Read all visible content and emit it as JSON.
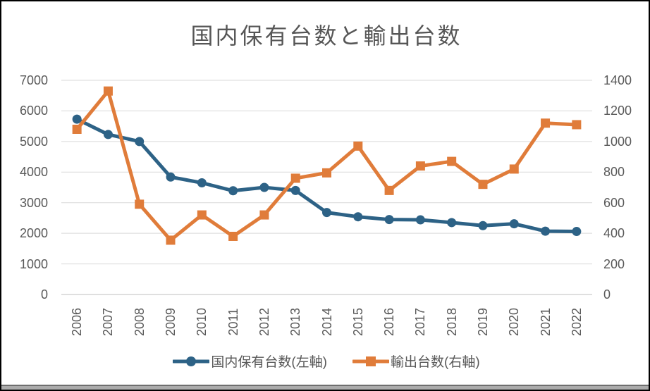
{
  "title": "国内保有台数と輸出台数",
  "colors": {
    "domestic_series": "#2d6286",
    "export_series": "#e07c3a",
    "gridline": "#d9d9d9",
    "axis_line": "#bfbfbf",
    "title_text": "#565656",
    "tick_text": "#595959"
  },
  "chart_data": {
    "type": "line",
    "title": "国内保有台数と輸出台数",
    "categories": [
      "2006",
      "2007",
      "2008",
      "2009",
      "2010",
      "2011",
      "2012",
      "2013",
      "2014",
      "2015",
      "2016",
      "2017",
      "2018",
      "2019",
      "2020",
      "2021",
      "2022"
    ],
    "series": [
      {
        "name": "国内保有台数(左軸)",
        "axis": "left",
        "marker": "circle",
        "color": "#2d6286",
        "values": [
          5730,
          5230,
          5000,
          3840,
          3650,
          3390,
          3500,
          3400,
          2680,
          2540,
          2450,
          2440,
          2350,
          2250,
          2310,
          2070,
          2060
        ]
      },
      {
        "name": "輸出台数(右軸)",
        "axis": "right",
        "marker": "square",
        "color": "#e07c3a",
        "values": [
          1080,
          1330,
          590,
          355,
          520,
          380,
          520,
          760,
          795,
          970,
          680,
          840,
          870,
          720,
          820,
          1120,
          1110
        ]
      }
    ],
    "left_axis": {
      "min": 0,
      "max": 7000,
      "step": 1000,
      "ticks": [
        "7000",
        "6000",
        "5000",
        "4000",
        "3000",
        "2000",
        "1000",
        "0"
      ]
    },
    "right_axis": {
      "min": 0,
      "max": 1400,
      "step": 200,
      "ticks": [
        "1400",
        "1200",
        "1000",
        "800",
        "600",
        "400",
        "200",
        "0"
      ]
    },
    "grid": true,
    "legend_position": "bottom"
  }
}
